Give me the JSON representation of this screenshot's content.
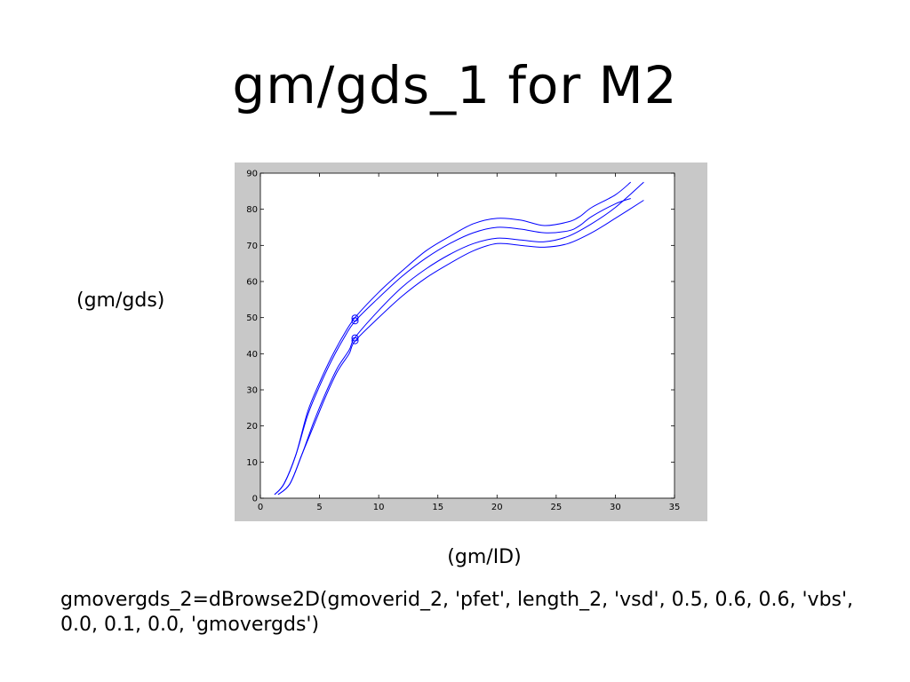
{
  "slide": {
    "title": "gm/gds_1 for M2",
    "caption": "gmovergds_2=dBrowse2D(gmoverid_2, 'pfet', length_2, 'vsd', 0.5, 0.6, 0.6, 'vbs', 0.0, 0.1, 0.0, 'gmovergds')"
  },
  "chart_data": {
    "type": "line",
    "title": "",
    "xlabel": "(gm/ID)",
    "ylabel": "(gm/gds)",
    "xlim": [
      0,
      35
    ],
    "ylim": [
      0,
      90
    ],
    "xticks": [
      "0",
      "5",
      "10",
      "15",
      "20",
      "25",
      "30",
      "35"
    ],
    "yticks": [
      "0",
      "10",
      "20",
      "30",
      "40",
      "50",
      "60",
      "70",
      "80",
      "90"
    ],
    "grid": false,
    "colors": {
      "line": "#0000ff",
      "axes_bg": "#ffffff",
      "figure_bg": "#c8c8c8"
    },
    "series": [
      {
        "x": [
          1.2,
          2,
          3,
          4,
          5,
          6,
          7,
          8,
          10,
          12,
          14,
          16,
          18,
          20,
          22,
          24,
          26,
          27,
          28,
          30,
          31.3
        ],
        "y": [
          1,
          4,
          12,
          24,
          32,
          39,
          45,
          50,
          57,
          63,
          68.5,
          72.5,
          76,
          77.5,
          77,
          75.5,
          76.5,
          78,
          80.5,
          84,
          87.5
        ]
      },
      {
        "x": [
          1.2,
          2,
          3,
          4,
          5,
          6,
          7,
          8,
          10,
          12,
          14,
          16,
          18,
          20,
          22,
          24,
          26,
          27,
          28,
          30,
          31.3
        ],
        "y": [
          1,
          4,
          12,
          23,
          31,
          38,
          44,
          49,
          55.5,
          61.5,
          66.5,
          70.5,
          73.5,
          75,
          74.5,
          73.5,
          74,
          75.5,
          78,
          81.5,
          83
        ]
      },
      {
        "x": [
          1.5,
          2.5,
          3.5,
          4.5,
          5.5,
          6.5,
          7.5,
          8,
          10,
          12,
          14,
          16,
          18,
          20,
          22,
          24,
          26,
          28,
          30,
          32.4
        ],
        "y": [
          1,
          4,
          12,
          21,
          29,
          36,
          41,
          44.5,
          52,
          58.5,
          63.5,
          67.5,
          70.5,
          72,
          71.5,
          71,
          72.5,
          76,
          80.5,
          87.5
        ]
      },
      {
        "x": [
          1.5,
          2.5,
          3.5,
          4.5,
          5.5,
          6.5,
          7.5,
          8,
          10,
          12,
          14,
          16,
          18,
          20,
          22,
          24,
          26,
          28,
          30,
          32.4
        ],
        "y": [
          1,
          4,
          12,
          20,
          28,
          35,
          40,
          43.5,
          50,
          56,
          61,
          65,
          68.5,
          70.5,
          70,
          69.5,
          70.5,
          73.5,
          77.5,
          82.5
        ]
      }
    ],
    "markers": [
      {
        "x": 8,
        "y": 49.5
      },
      {
        "x": 8,
        "y": 44
      }
    ]
  }
}
